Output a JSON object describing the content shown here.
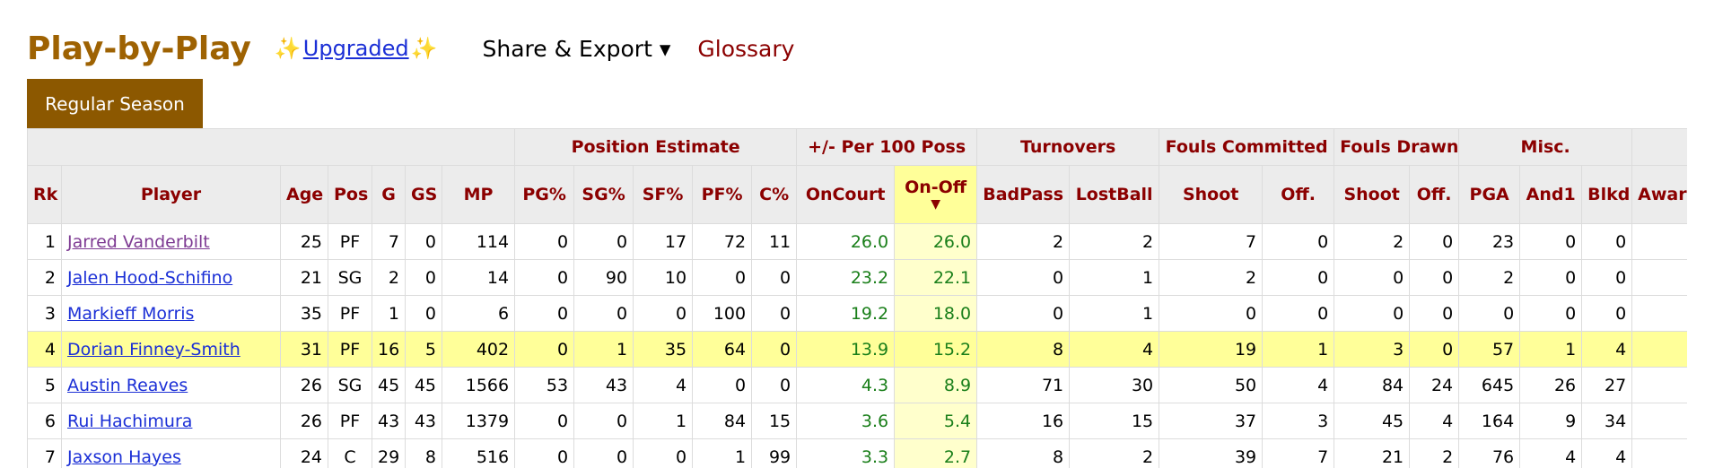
{
  "header": {
    "title": "Play-by-Play",
    "spark": "✨",
    "upgraded": "Upgraded",
    "share": "Share & Export ▾",
    "glossary": "Glossary"
  },
  "tab": {
    "label": "Regular Season"
  },
  "groups": [
    "Position Estimate",
    "+/- Per 100 Poss",
    "Turnovers",
    "Fouls Committed",
    "Fouls Drawn",
    "Misc."
  ],
  "columns": [
    "Rk",
    "Player",
    "Age",
    "Pos",
    "G",
    "GS",
    "MP",
    "PG%",
    "SG%",
    "SF%",
    "PF%",
    "C%",
    "OnCourt",
    "On-Off",
    "BadPass",
    "LostBall",
    "Shoot",
    "Off.",
    "Shoot",
    "Off.",
    "PGA",
    "And1",
    "Blkd",
    "Awards"
  ],
  "sort_arrow": "▼",
  "rows": [
    [
      "1",
      "Jarred Vanderbilt",
      "25",
      "PF",
      "7",
      "0",
      "114",
      "0",
      "0",
      "17",
      "72",
      "11",
      "26.0",
      "26.0",
      "2",
      "2",
      "7",
      "0",
      "2",
      "0",
      "23",
      "0",
      "0",
      ""
    ],
    [
      "2",
      "Jalen Hood-Schifino",
      "21",
      "SG",
      "2",
      "0",
      "14",
      "0",
      "90",
      "10",
      "0",
      "0",
      "23.2",
      "22.1",
      "0",
      "1",
      "2",
      "0",
      "0",
      "0",
      "2",
      "0",
      "0",
      ""
    ],
    [
      "3",
      "Markieff Morris",
      "35",
      "PF",
      "1",
      "0",
      "6",
      "0",
      "0",
      "0",
      "100",
      "0",
      "19.2",
      "18.0",
      "0",
      "1",
      "0",
      "0",
      "0",
      "0",
      "0",
      "0",
      "0",
      ""
    ],
    [
      "4",
      "Dorian Finney-Smith",
      "31",
      "PF",
      "16",
      "5",
      "402",
      "0",
      "1",
      "35",
      "64",
      "0",
      "13.9",
      "15.2",
      "8",
      "4",
      "19",
      "1",
      "3",
      "0",
      "57",
      "1",
      "4",
      ""
    ],
    [
      "5",
      "Austin Reaves",
      "26",
      "SG",
      "45",
      "45",
      "1566",
      "53",
      "43",
      "4",
      "0",
      "0",
      "4.3",
      "8.9",
      "71",
      "30",
      "50",
      "4",
      "84",
      "24",
      "645",
      "26",
      "27",
      ""
    ],
    [
      "6",
      "Rui Hachimura",
      "26",
      "PF",
      "43",
      "43",
      "1379",
      "0",
      "0",
      "1",
      "84",
      "15",
      "3.6",
      "5.4",
      "16",
      "15",
      "37",
      "3",
      "45",
      "4",
      "164",
      "9",
      "34",
      ""
    ],
    [
      "7",
      "Jaxson Hayes",
      "24",
      "C",
      "29",
      "8",
      "516",
      "0",
      "0",
      "0",
      "1",
      "99",
      "3.3",
      "2.7",
      "8",
      "2",
      "39",
      "7",
      "21",
      "2",
      "76",
      "4",
      "4",
      ""
    ]
  ]
}
